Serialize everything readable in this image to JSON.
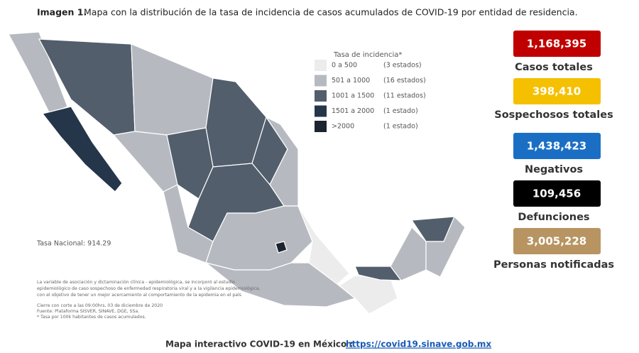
{
  "title": {
    "label": "Imagen 1.",
    "text": "Mapa con la distribución de la tasa de incidencia de casos acumulados de COVID-19 por entidad de residencia."
  },
  "legend": {
    "title": "Tasa de incidencia*",
    "items": [
      {
        "range": "0 a 500",
        "count": "(3 estados)",
        "color": "#ececec"
      },
      {
        "range": "501 a 1000",
        "count": "(16 estados)",
        "color": "#b6bac0"
      },
      {
        "range": "1001 a 1500",
        "count": "(11 estados)",
        "color": "#525e6c"
      },
      {
        "range": "1501 a 2000",
        "count": "(1 estado)",
        "color": "#25354a"
      },
      {
        "range": ">2000",
        "count": "(1 estado)",
        "color": "#1b2430"
      }
    ]
  },
  "national_rate": "Tasa Nacional: 914.29",
  "notes": [
    "La variable de asociación y dictaminación clínica - epidemiológica, se incorporó al estudio",
    "epidemiológico de caso sospechoso de enfermedad respiratoria viral y a la vigilancia epidemiológica,",
    "con el objetivo de tener un mejor acercamiento al comportamiento de la epidemia en el país",
    "Cierre con corte a las 09:00hrs, 03 de diciembre de 2020",
    "Fuente: Plataforma SISVER, SINAVE, DGE, SSa.",
    "* Tasa por 100k habitantes de casos acumulados."
  ],
  "stats": [
    {
      "value": "1,168,395",
      "label": "Casos totales",
      "color": "#c00000"
    },
    {
      "value": "398,410",
      "label": "Sospechosos totales",
      "color": "#f5c000"
    },
    {
      "value": "1,438,423",
      "label": "Negativos",
      "color": "#1a6fc4"
    },
    {
      "value": "109,456",
      "label": "Defunciones",
      "color": "#000000"
    },
    {
      "value": "3,005,228",
      "label": "Personas notificadas",
      "color": "#b79461"
    }
  ],
  "footer": {
    "text": "Mapa interactivo COVID-19 en México :",
    "link": "https://covid19.sinave.gob.mx"
  }
}
